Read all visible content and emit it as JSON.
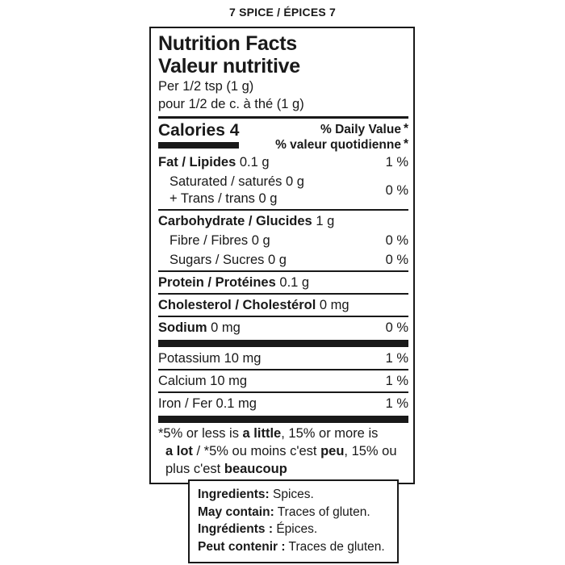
{
  "page_title": "7 SPICE / ÉPICES 7",
  "label": {
    "title_en": "Nutrition Facts",
    "title_fr": "Valeur nutritive",
    "serving_en": "Per 1/2 tsp (1 g)",
    "serving_fr": "pour 1/2 de c. à thé (1 g)",
    "calories_label": "Calories",
    "calories_value": "4",
    "dv_header_en": "% Daily Value",
    "dv_header_fr": "% valeur quotidienne",
    "dv_asterisk": "*",
    "nutrients": {
      "fat": {
        "name": "Fat / Lipides",
        "amount": "0.1 g",
        "dv": "1 %"
      },
      "sat_trans": {
        "line1": "Saturated / saturés 0 g",
        "line2": "+ Trans / trans 0 g",
        "dv": "0 %"
      },
      "carb": {
        "name": "Carbohydrate / Glucides",
        "amount": "1 g"
      },
      "fibre": {
        "name": "Fibre / Fibres 0 g",
        "dv": "0 %"
      },
      "sugars": {
        "name": "Sugars / Sucres 0 g",
        "dv": "0 %"
      },
      "protein": {
        "name": "Protein / Protéines",
        "amount": "0.1 g"
      },
      "cholesterol": {
        "name": "Cholesterol / Cholestérol",
        "amount": "0 mg"
      },
      "sodium": {
        "name": "Sodium",
        "amount": "0 mg",
        "dv": "0 %"
      },
      "potassium": {
        "name": "Potassium 10 mg",
        "dv": "1 %"
      },
      "calcium": {
        "name": "Calcium 10 mg",
        "dv": "1 %"
      },
      "iron": {
        "name": "Iron / Fer 0.1 mg",
        "dv": "1 %"
      }
    },
    "footnote": {
      "en_pre": "*5% or less is ",
      "en_b1": "a little",
      "en_mid": ", 15% or more is",
      "en_b2": "a lot",
      "fr_pre": " / *5% ou moins c'est ",
      "fr_b1": "peu",
      "fr_mid": ", 15% ou",
      "fr_tail": "plus c'est ",
      "fr_b2": "beaucoup"
    }
  },
  "ingredients_box": {
    "lines": [
      {
        "label": "Ingredients:",
        "text": "Spices."
      },
      {
        "label": "May contain:",
        "text": "Traces of gluten."
      },
      {
        "label": "Ingrédients :",
        "text": "Épices."
      },
      {
        "label": "Peut contenir :",
        "text": "Traces de gluten."
      }
    ]
  },
  "colors": {
    "ink": "#191919",
    "background": "#ffffff"
  }
}
